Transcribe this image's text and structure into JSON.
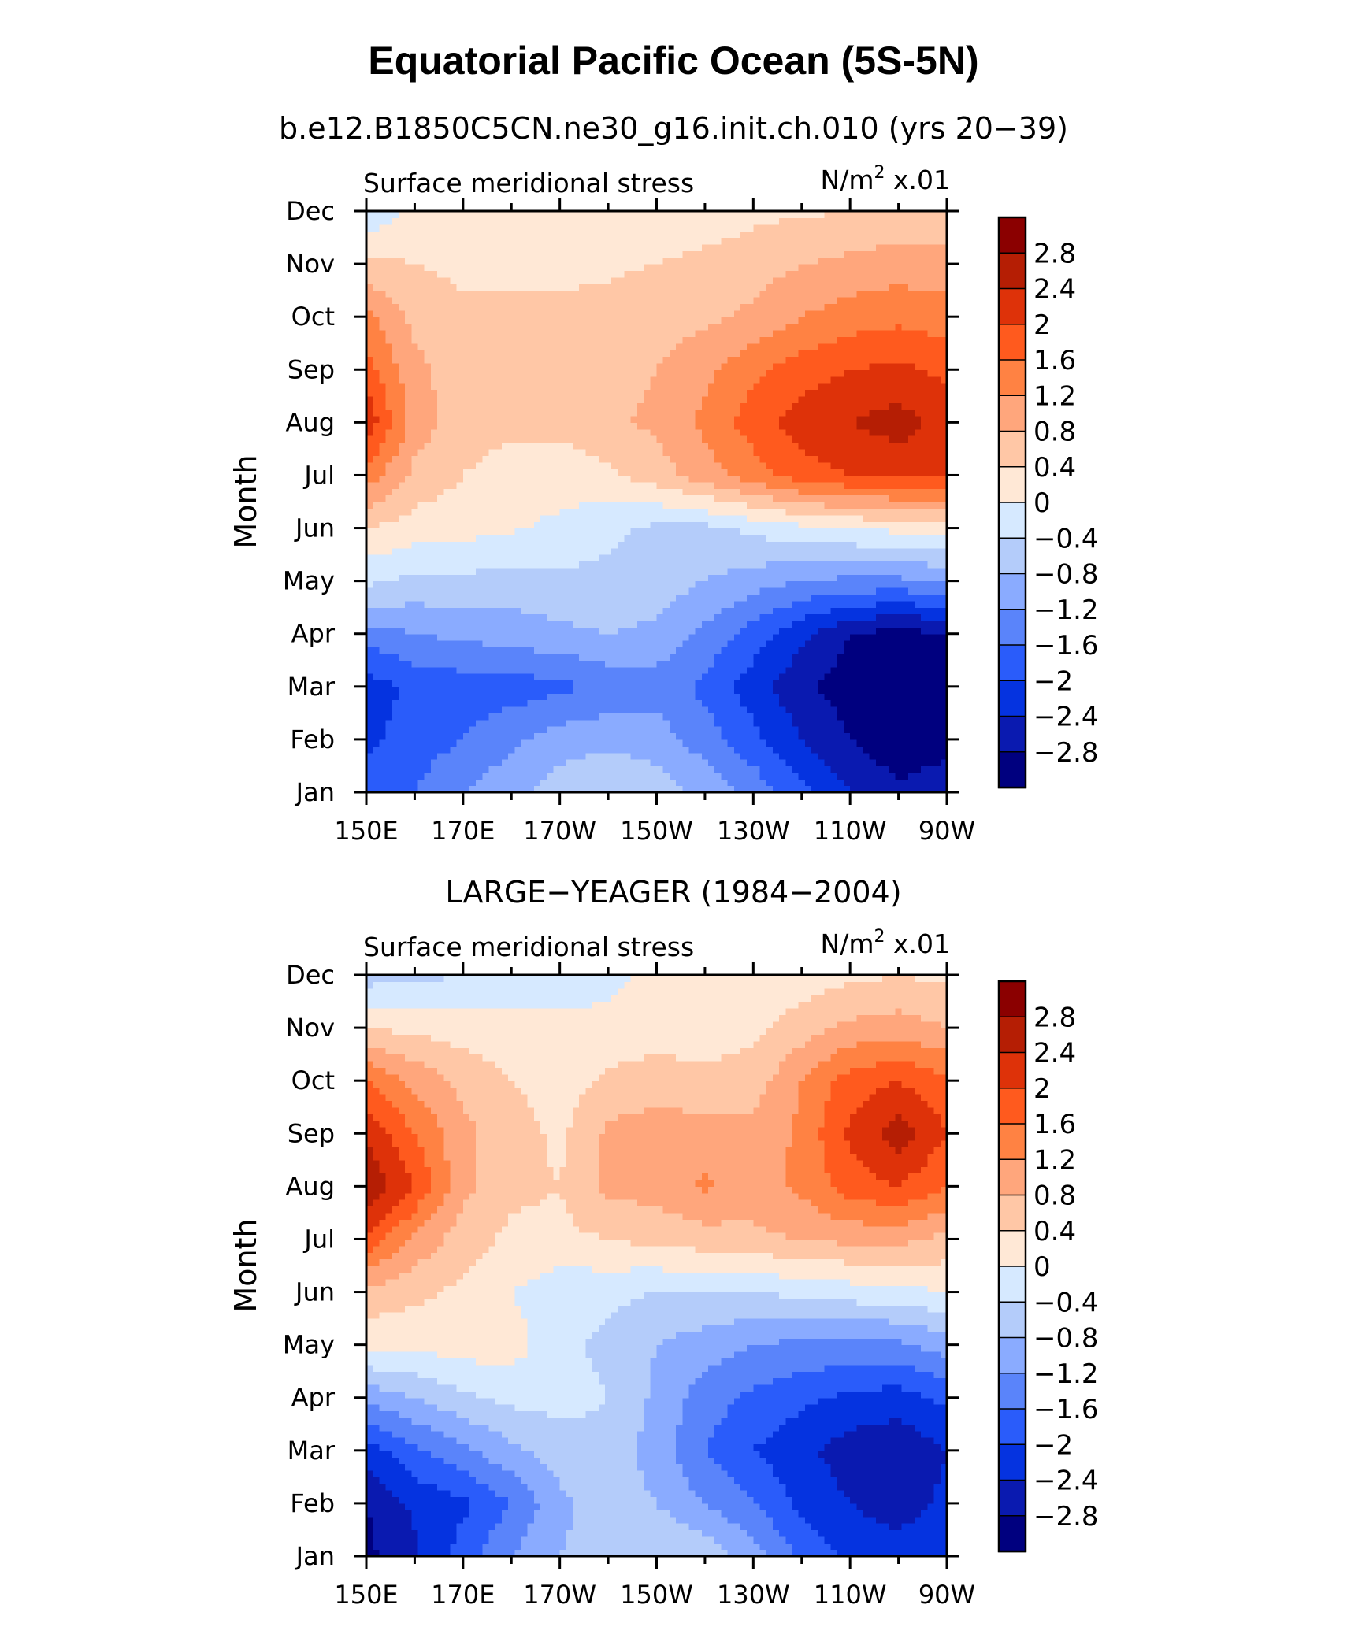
{
  "title": "Equatorial Pacific Ocean (5S-5N)",
  "chart_data": [
    {
      "type": "heatmap",
      "title": "b.e12.B1850C5CN.ne30_g16.init.ch.010 (yrs 20−39)",
      "left_label": "Surface meridional stress",
      "units_prefix": "N/m",
      "units_sup": "2",
      "units_suffix": " x.01",
      "xlabel": "",
      "ylabel": "Month",
      "x_ticks": [
        "150E",
        "170E",
        "170W",
        "150W",
        "130W",
        "110W",
        "90W"
      ],
      "y_ticks": [
        "Jan",
        "Feb",
        "Mar",
        "Apr",
        "May",
        "Jun",
        "Jul",
        "Aug",
        "Sep",
        "Oct",
        "Nov",
        "Dec"
      ],
      "x": [
        150,
        160,
        170,
        180,
        190,
        200,
        210,
        220,
        230,
        240,
        250,
        260,
        270
      ],
      "values": [
        [
          -1.8,
          -1.6,
          -1.2,
          -0.9,
          -0.6,
          -0.4,
          -0.6,
          -0.9,
          -1.3,
          -1.9,
          -2.4,
          -2.7,
          -2.5
        ],
        [
          -2.1,
          -1.8,
          -1.6,
          -1.3,
          -1.0,
          -0.9,
          -1.0,
          -1.4,
          -1.9,
          -2.4,
          -2.8,
          -3.1,
          -3.0
        ],
        [
          -2.2,
          -1.9,
          -1.8,
          -1.8,
          -1.7,
          -1.5,
          -1.4,
          -1.7,
          -2.2,
          -2.7,
          -3.0,
          -3.3,
          -3.2
        ],
        [
          -1.4,
          -1.2,
          -1.1,
          -1.0,
          -0.9,
          -0.8,
          -0.9,
          -1.3,
          -1.8,
          -2.3,
          -2.8,
          -3.0,
          -2.8
        ],
        [
          -0.3,
          -0.5,
          -0.5,
          -0.6,
          -0.5,
          -0.5,
          -0.6,
          -0.8,
          -1.0,
          -1.2,
          -1.3,
          -1.3,
          -1.2
        ],
        [
          0.4,
          0.2,
          0.15,
          0.05,
          -0.1,
          -0.3,
          -0.5,
          -0.5,
          -0.3,
          -0.1,
          0.0,
          0.1,
          0.2
        ],
        [
          1.4,
          0.7,
          0.4,
          0.2,
          0.2,
          0.3,
          0.6,
          1.0,
          1.4,
          1.8,
          2.0,
          2.1,
          2.0
        ],
        [
          2.3,
          1.0,
          0.6,
          0.5,
          0.5,
          0.7,
          0.9,
          1.3,
          1.8,
          2.2,
          2.4,
          2.6,
          2.2
        ],
        [
          1.8,
          0.9,
          0.6,
          0.5,
          0.5,
          0.6,
          0.8,
          1.1,
          1.5,
          1.8,
          2.0,
          2.1,
          1.9
        ],
        [
          1.3,
          0.7,
          0.5,
          0.5,
          0.5,
          0.5,
          0.6,
          0.7,
          0.9,
          1.2,
          1.4,
          1.5,
          1.4
        ],
        [
          0.5,
          0.4,
          0.3,
          0.3,
          0.3,
          0.35,
          0.4,
          0.5,
          0.6,
          0.8,
          0.9,
          1.0,
          0.95
        ],
        [
          -0.4,
          0.2,
          0.15,
          0.1,
          0.1,
          0.1,
          0.15,
          0.2,
          0.3,
          0.35,
          0.4,
          0.5,
          0.5
        ]
      ],
      "levels": [
        -2.8,
        -2.4,
        -2.0,
        -1.6,
        -1.2,
        -0.8,
        -0.4,
        0,
        0.4,
        0.8,
        1.2,
        1.6,
        2.0,
        2.4,
        2.8
      ]
    },
    {
      "type": "heatmap",
      "title": "LARGE−YEAGER (1984−2004)",
      "left_label": "Surface meridional stress",
      "units_prefix": "N/m",
      "units_sup": "2",
      "units_suffix": " x.01",
      "xlabel": "",
      "ylabel": "Month",
      "x_ticks": [
        "150E",
        "170E",
        "170W",
        "150W",
        "130W",
        "110W",
        "90W"
      ],
      "y_ticks": [
        "Jan",
        "Feb",
        "Mar",
        "Apr",
        "May",
        "Jun",
        "Jul",
        "Aug",
        "Sep",
        "Oct",
        "Nov",
        "Dec"
      ],
      "x": [
        150,
        160,
        170,
        180,
        190,
        200,
        210,
        220,
        230,
        240,
        250,
        260,
        270
      ],
      "values": [
        [
          -2.9,
          -2.5,
          -1.8,
          -1.2,
          -0.8,
          -0.6,
          -0.4,
          -0.5,
          -1.0,
          -1.7,
          -2.1,
          -2.2,
          -2.0
        ],
        [
          -2.8,
          -2.3,
          -2.1,
          -1.6,
          -0.9,
          -0.6,
          -0.8,
          -1.2,
          -1.6,
          -2.1,
          -2.4,
          -2.6,
          -2.3
        ],
        [
          -2.2,
          -1.7,
          -1.3,
          -0.9,
          -0.6,
          -0.5,
          -1.0,
          -1.6,
          -2.0,
          -2.3,
          -2.6,
          -2.7,
          -2.4
        ],
        [
          -1.1,
          -0.8,
          -0.5,
          -0.3,
          -0.25,
          -0.4,
          -0.9,
          -1.4,
          -1.7,
          -1.9,
          -2.1,
          -2.2,
          -1.9
        ],
        [
          0.1,
          0.1,
          0.2,
          0.2,
          -0.3,
          -0.5,
          -0.8,
          -1.0,
          -1.2,
          -1.3,
          -1.3,
          -1.3,
          -1.0
        ],
        [
          0.7,
          0.5,
          0.3,
          0.0,
          -0.25,
          -0.3,
          -0.4,
          -0.4,
          -0.4,
          -0.3,
          -0.2,
          -0.15,
          0.0
        ],
        [
          1.9,
          1.1,
          0.6,
          0.3,
          0.3,
          0.4,
          0.5,
          0.6,
          0.7,
          0.8,
          0.9,
          0.9,
          0.7
        ],
        [
          2.8,
          2.0,
          0.9,
          0.5,
          0.4,
          0.9,
          1.0,
          1.25,
          1.0,
          1.3,
          1.8,
          2.0,
          1.6
        ],
        [
          2.3,
          1.6,
          0.9,
          0.6,
          0.3,
          0.9,
          1.0,
          1.0,
          0.9,
          1.3,
          2.1,
          2.6,
          2.0
        ],
        [
          1.6,
          1.1,
          0.7,
          0.4,
          0.2,
          0.5,
          0.6,
          0.5,
          0.6,
          1.2,
          1.8,
          2.0,
          1.7
        ],
        [
          0.4,
          0.3,
          0.2,
          0.15,
          0.1,
          0.1,
          0.2,
          0.2,
          0.3,
          0.6,
          0.9,
          1.0,
          0.8
        ],
        [
          -0.6,
          -0.5,
          -0.4,
          -0.3,
          -0.2,
          -0.1,
          0.1,
          0.2,
          0.15,
          0.2,
          0.3,
          0.4,
          0.3
        ]
      ],
      "levels": [
        -2.8,
        -2.4,
        -2.0,
        -1.6,
        -1.2,
        -0.8,
        -0.4,
        0,
        0.4,
        0.8,
        1.2,
        1.6,
        2.0,
        2.4,
        2.8
      ]
    }
  ],
  "colorbar": {
    "labels": [
      "2.8",
      "2.4",
      "2",
      "1.6",
      "1.2",
      "0.8",
      "0.4",
      "0",
      "−0.4",
      "−0.8",
      "−1.2",
      "−1.6",
      "−2",
      "−2.4",
      "−2.8"
    ],
    "colors_top_to_bottom": [
      "#8b0000",
      "#b51e04",
      "#de3209",
      "#ff5a1e",
      "#ff8243",
      "#ffa67c",
      "#ffc7a6",
      "#ffe8d6",
      "#d6e9ff",
      "#b4ccfa",
      "#8aabff",
      "#5a84fa",
      "#2a5cfa",
      "#0533e0",
      "#0a1ab0",
      "#00007f"
    ]
  }
}
